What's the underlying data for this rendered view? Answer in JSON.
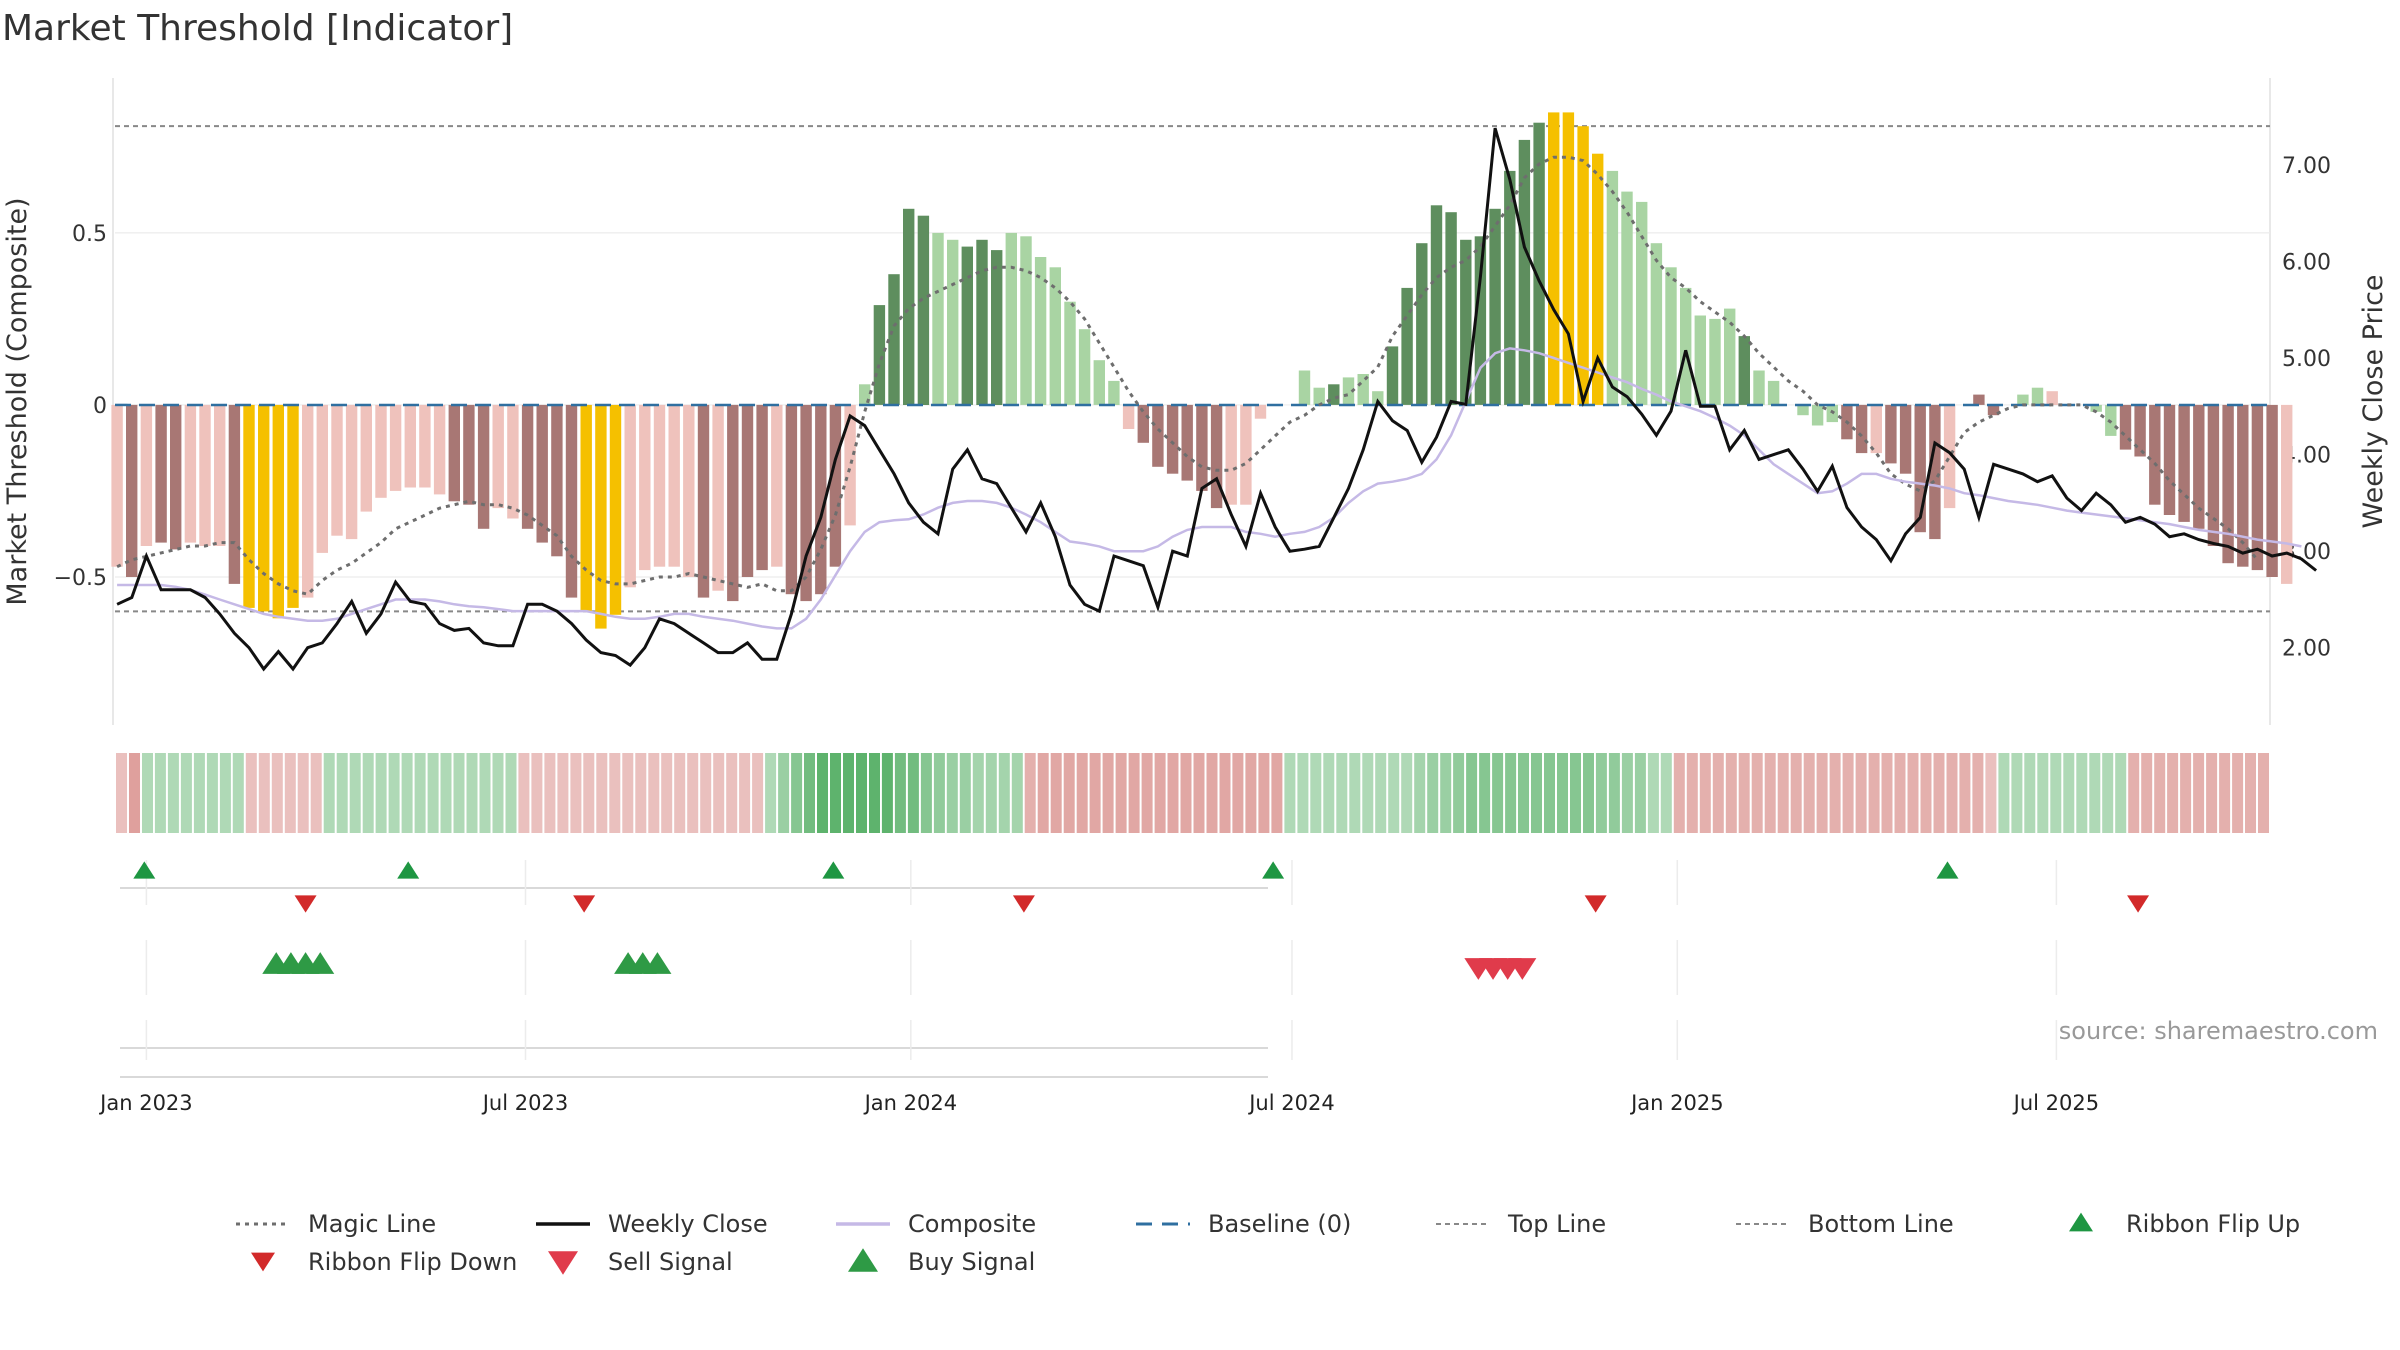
{
  "page": {
    "title": "Market Threshold [Indicator]"
  },
  "colors": {
    "pos_strong": "#5e8e5e",
    "pos_weak": "#a9d4a3",
    "neg_strong": "#a87774",
    "neg_weak": "#efc2bc",
    "extreme": "#f5c000",
    "magic": "#6e6e6e",
    "weekly": "#111111",
    "composite": "#c5b9e6",
    "baseline": "#2f6fa0",
    "threshold": "#888888",
    "ribbon_up": "#1e9642",
    "ribbon_down": "#d22a2a",
    "sell": "#e03b4b",
    "buy": "#2e9a45"
  },
  "chart_data": {
    "type": "bar",
    "title": "Market Threshold [Indicator]",
    "ylabel": "Market Threshold (Composite)",
    "ylabel_right": "Weekly Close Price",
    "ylim": [
      -0.93,
      0.95
    ],
    "ylim_right": [
      1.2,
      7.9
    ],
    "yticks_left": [
      0.5,
      0,
      -0.5
    ],
    "ytick_labels_left": [
      "0.5",
      "0",
      "−0.5"
    ],
    "yticks_right": [
      7,
      6,
      5,
      4,
      3,
      2
    ],
    "ytick_labels_right": [
      "7.00",
      "6.00",
      "5.00",
      "4.00",
      "3.00",
      "2.00"
    ],
    "xticks": [
      {
        "date": "2023-01-01",
        "label": "Jan 2023"
      },
      {
        "date": "2023-07-01",
        "label": "Jul 2023"
      },
      {
        "date": "2024-01-01",
        "label": "Jan 2024"
      },
      {
        "date": "2024-07-01",
        "label": "Jul 2024"
      },
      {
        "date": "2025-01-01",
        "label": "Jan 2025"
      },
      {
        "date": "2025-07-01",
        "label": "Jul 2025"
      }
    ],
    "x_range": [
      "2022-12-17",
      "2025-10-11"
    ],
    "top_line": 0.81,
    "bottom_line": -0.6,
    "baseline": 0,
    "start_date": "2022-12-18",
    "week_step_days": 7,
    "composite_bars": [
      -0.47,
      -0.5,
      -0.41,
      -0.4,
      -0.42,
      -0.4,
      -0.41,
      -0.41,
      -0.52,
      -0.59,
      -0.6,
      -0.62,
      -0.59,
      -0.56,
      -0.43,
      -0.38,
      -0.39,
      -0.31,
      -0.27,
      -0.25,
      -0.24,
      -0.24,
      -0.26,
      -0.28,
      -0.29,
      -0.36,
      -0.3,
      -0.33,
      -0.36,
      -0.4,
      -0.44,
      -0.56,
      -0.6,
      -0.65,
      -0.61,
      -0.53,
      -0.48,
      -0.47,
      -0.47,
      -0.5,
      -0.56,
      -0.54,
      -0.57,
      -0.5,
      -0.48,
      -0.47,
      -0.55,
      -0.57,
      -0.55,
      -0.47,
      -0.35,
      0.06,
      0.29,
      0.38,
      0.57,
      0.55,
      0.5,
      0.48,
      0.46,
      0.48,
      0.45,
      0.5,
      0.49,
      0.43,
      0.4,
      0.3,
      0.22,
      0.13,
      0.07,
      -0.07,
      -0.11,
      -0.18,
      -0.2,
      -0.22,
      -0.25,
      -0.3,
      -0.29,
      -0.29,
      -0.04,
      0.0,
      0.0,
      0.1,
      0.05,
      0.06,
      0.08,
      0.09,
      0.04,
      0.17,
      0.34,
      0.47,
      0.58,
      0.56,
      0.48,
      0.49,
      0.57,
      0.68,
      0.77,
      0.82,
      0.85,
      0.85,
      0.81,
      0.73,
      0.68,
      0.62,
      0.59,
      0.47,
      0.4,
      0.34,
      0.26,
      0.25,
      0.28,
      0.2,
      0.1,
      0.07,
      0.0,
      -0.03,
      -0.06,
      -0.05,
      -0.1,
      -0.14,
      -0.14,
      -0.17,
      -0.2,
      -0.37,
      -0.39,
      -0.3,
      -0.0,
      0.03,
      -0.03,
      0.0,
      0.03,
      0.05,
      0.04,
      0.0,
      0.0,
      -0.02,
      -0.09,
      -0.13,
      -0.15,
      -0.29,
      -0.32,
      -0.34,
      -0.36,
      -0.41,
      -0.46,
      -0.47,
      -0.48,
      -0.5,
      -0.52
    ],
    "bar_state": [
      "n",
      "N",
      "n",
      "N",
      "N",
      "n",
      "n",
      "n",
      "N",
      "y",
      "y",
      "y",
      "y",
      "n",
      "n",
      "n",
      "n",
      "n",
      "n",
      "n",
      "n",
      "n",
      "n",
      "N",
      "N",
      "N",
      "n",
      "n",
      "N",
      "N",
      "N",
      "N",
      "y",
      "y",
      "y",
      "n",
      "n",
      "n",
      "n",
      "n",
      "N",
      "n",
      "N",
      "N",
      "N",
      "n",
      "N",
      "N",
      "N",
      "N",
      "n",
      "p",
      "P",
      "P",
      "P",
      "P",
      "p",
      "p",
      "P",
      "P",
      "P",
      "p",
      "p",
      "p",
      "p",
      "p",
      "p",
      "p",
      "p",
      "n",
      "N",
      "N",
      "N",
      "N",
      "N",
      "N",
      "n",
      "n",
      "n",
      "n",
      "n",
      "p",
      "p",
      "P",
      "p",
      "p",
      "p",
      "P",
      "P",
      "P",
      "P",
      "P",
      "P",
      "P",
      "P",
      "P",
      "P",
      "P",
      "y",
      "y",
      "y",
      "y",
      "p",
      "p",
      "p",
      "p",
      "p",
      "p",
      "p",
      "p",
      "p",
      "P",
      "p",
      "p",
      "p",
      "p",
      "p",
      "p",
      "N",
      "N",
      "n",
      "N",
      "N",
      "N",
      "N",
      "n",
      "N",
      "N",
      "N",
      "N",
      "p",
      "p",
      "n",
      "n",
      "P",
      "p",
      "p",
      "N",
      "N",
      "N",
      "N",
      "N",
      "N",
      "N",
      "N",
      "N",
      "N",
      "N",
      "n",
      "N",
      "N",
      "N"
    ],
    "weekly_close": [
      2.45,
      2.52,
      2.95,
      2.6,
      2.6,
      2.6,
      2.52,
      2.35,
      2.15,
      2.0,
      1.78,
      1.96,
      1.78,
      2.0,
      2.05,
      2.25,
      2.48,
      2.15,
      2.35,
      2.68,
      2.48,
      2.45,
      2.25,
      2.18,
      2.2,
      2.05,
      2.02,
      2.02,
      2.45,
      2.45,
      2.38,
      2.25,
      2.08,
      1.95,
      1.92,
      1.82,
      2.0,
      2.3,
      2.25,
      2.15,
      2.05,
      1.95,
      1.95,
      2.05,
      1.88,
      1.88,
      2.35,
      2.95,
      3.35,
      3.95,
      4.4,
      4.3,
      4.05,
      3.8,
      3.5,
      3.3,
      3.18,
      3.85,
      4.05,
      3.75,
      3.7,
      3.45,
      3.2,
      3.5,
      3.15,
      2.65,
      2.45,
      2.38,
      2.95,
      2.9,
      2.85,
      2.42,
      3.0,
      2.95,
      3.65,
      3.75,
      3.38,
      3.05,
      3.6,
      3.25,
      3.0,
      3.02,
      3.05,
      3.35,
      3.65,
      4.05,
      4.55,
      4.35,
      4.25,
      3.92,
      4.18,
      4.55,
      4.52,
      5.85,
      7.38,
      6.85,
      6.15,
      5.8,
      5.5,
      5.25,
      4.55,
      5.0,
      4.7,
      4.6,
      4.42,
      4.2,
      4.45,
      5.08,
      4.5,
      4.5,
      4.05,
      4.25,
      3.95,
      4.0,
      4.05,
      3.85,
      3.62,
      3.88,
      3.45,
      3.25,
      3.12,
      2.9,
      3.18,
      3.35,
      4.12,
      4.02,
      3.85,
      3.35,
      3.9,
      3.85,
      3.8,
      3.72,
      3.78,
      3.55,
      3.42,
      3.6,
      3.48,
      3.3,
      3.35,
      3.28,
      3.15,
      3.18,
      3.12,
      3.08,
      3.05,
      2.98,
      3.02,
      2.95,
      2.98,
      2.92,
      2.8
    ],
    "magic_line": [
      -0.47,
      -0.45,
      -0.44,
      -0.43,
      -0.42,
      -0.41,
      -0.41,
      -0.4,
      -0.4,
      -0.45,
      -0.49,
      -0.52,
      -0.54,
      -0.55,
      -0.51,
      -0.48,
      -0.46,
      -0.43,
      -0.4,
      -0.36,
      -0.34,
      -0.32,
      -0.3,
      -0.29,
      -0.28,
      -0.29,
      -0.29,
      -0.3,
      -0.32,
      -0.35,
      -0.38,
      -0.44,
      -0.48,
      -0.51,
      -0.52,
      -0.52,
      -0.51,
      -0.5,
      -0.5,
      -0.49,
      -0.5,
      -0.51,
      -0.52,
      -0.53,
      -0.52,
      -0.54,
      -0.54,
      -0.5,
      -0.42,
      -0.32,
      -0.18,
      -0.02,
      0.12,
      0.23,
      0.28,
      0.31,
      0.33,
      0.35,
      0.37,
      0.39,
      0.4,
      0.4,
      0.39,
      0.37,
      0.34,
      0.3,
      0.25,
      0.18,
      0.11,
      0.04,
      -0.02,
      -0.07,
      -0.11,
      -0.15,
      -0.18,
      -0.19,
      -0.19,
      -0.17,
      -0.13,
      -0.09,
      -0.05,
      -0.03,
      0.0,
      0.02,
      0.03,
      0.07,
      0.11,
      0.2,
      0.26,
      0.32,
      0.37,
      0.4,
      0.42,
      0.46,
      0.52,
      0.58,
      0.66,
      0.7,
      0.72,
      0.72,
      0.71,
      0.67,
      0.62,
      0.56,
      0.49,
      0.42,
      0.37,
      0.34,
      0.3,
      0.27,
      0.24,
      0.2,
      0.15,
      0.11,
      0.07,
      0.04,
      0.0,
      -0.02,
      -0.05,
      -0.09,
      -0.14,
      -0.2,
      -0.23,
      -0.25,
      -0.22,
      -0.15,
      -0.08,
      -0.05,
      -0.03,
      -0.01,
      0.0,
      0.0,
      0.0,
      0.0,
      0.0,
      -0.02,
      -0.05,
      -0.09,
      -0.13,
      -0.17,
      -0.22,
      -0.26,
      -0.3,
      -0.33,
      -0.36,
      -0.4,
      -0.45
    ],
    "composite_line": [
      2.65,
      2.65,
      2.65,
      2.65,
      2.63,
      2.6,
      2.55,
      2.5,
      2.45,
      2.4,
      2.35,
      2.32,
      2.3,
      2.28,
      2.28,
      2.3,
      2.35,
      2.4,
      2.45,
      2.5,
      2.5,
      2.5,
      2.48,
      2.45,
      2.43,
      2.42,
      2.4,
      2.38,
      2.38,
      2.38,
      2.38,
      2.38,
      2.38,
      2.35,
      2.32,
      2.3,
      2.3,
      2.32,
      2.35,
      2.35,
      2.32,
      2.3,
      2.28,
      2.25,
      2.22,
      2.2,
      2.2,
      2.3,
      2.5,
      2.75,
      3.0,
      3.2,
      3.3,
      3.32,
      3.33,
      3.38,
      3.45,
      3.5,
      3.52,
      3.52,
      3.5,
      3.45,
      3.38,
      3.3,
      3.2,
      3.1,
      3.08,
      3.05,
      3.0,
      3.0,
      3.0,
      3.05,
      3.15,
      3.22,
      3.25,
      3.25,
      3.25,
      3.2,
      3.18,
      3.15,
      3.18,
      3.2,
      3.25,
      3.35,
      3.5,
      3.62,
      3.7,
      3.72,
      3.75,
      3.8,
      3.95,
      4.2,
      4.55,
      4.9,
      5.05,
      5.1,
      5.08,
      5.05,
      5.0,
      4.95,
      4.9,
      4.85,
      4.8,
      4.75,
      4.68,
      4.62,
      4.55,
      4.5,
      4.45,
      4.38,
      4.3,
      4.2,
      4.05,
      3.9,
      3.8,
      3.7,
      3.6,
      3.62,
      3.7,
      3.8,
      3.8,
      3.75,
      3.72,
      3.7,
      3.68,
      3.65,
      3.6,
      3.58,
      3.55,
      3.52,
      3.5,
      3.48,
      3.45,
      3.42,
      3.4,
      3.38,
      3.36,
      3.34,
      3.32,
      3.3,
      3.28,
      3.25,
      3.22,
      3.2,
      3.18,
      3.15,
      3.12,
      3.1,
      3.08,
      3.05
    ],
    "ribbon": [
      -0.4,
      -0.6,
      0.4,
      0.4,
      0.4,
      0.4,
      0.4,
      0.4,
      0.4,
      0.4,
      -0.4,
      -0.4,
      -0.4,
      -0.4,
      -0.4,
      -0.4,
      0.4,
      0.4,
      0.4,
      0.4,
      0.4,
      0.4,
      0.4,
      0.4,
      0.4,
      0.4,
      0.4,
      0.4,
      0.4,
      0.4,
      0.4,
      -0.4,
      -0.4,
      -0.4,
      -0.4,
      -0.4,
      -0.4,
      -0.4,
      -0.4,
      -0.4,
      -0.4,
      -0.4,
      -0.4,
      -0.4,
      -0.4,
      -0.4,
      -0.4,
      -0.4,
      -0.4,
      -0.4,
      0.4,
      0.5,
      0.6,
      0.7,
      0.8,
      0.8,
      0.8,
      0.8,
      0.8,
      0.8,
      0.7,
      0.7,
      0.6,
      0.55,
      0.5,
      0.5,
      0.45,
      0.45,
      0.45,
      0.45,
      -0.5,
      -0.55,
      -0.55,
      -0.55,
      -0.55,
      -0.55,
      -0.55,
      -0.55,
      -0.55,
      -0.55,
      -0.55,
      -0.55,
      -0.55,
      -0.55,
      -0.55,
      -0.55,
      -0.55,
      -0.55,
      -0.55,
      -0.55,
      0.4,
      0.4,
      0.4,
      0.4,
      0.4,
      0.4,
      0.4,
      0.4,
      0.4,
      0.4,
      0.45,
      0.5,
      0.5,
      0.55,
      0.6,
      0.6,
      0.6,
      0.6,
      0.6,
      0.6,
      0.6,
      0.6,
      0.6,
      0.6,
      0.55,
      0.55,
      0.5,
      0.5,
      0.4,
      0.4,
      -0.5,
      -0.5,
      -0.5,
      -0.5,
      -0.5,
      -0.5,
      -0.5,
      -0.5,
      -0.5,
      -0.5,
      -0.5,
      -0.5,
      -0.5,
      -0.5,
      -0.5,
      -0.5,
      -0.5,
      -0.5,
      -0.5,
      -0.5,
      -0.5,
      -0.5,
      -0.5,
      -0.5,
      -0.4,
      0.4,
      0.4,
      0.4,
      0.4,
      0.4,
      0.4,
      0.4,
      0.4,
      0.4,
      0.4,
      -0.5,
      -0.5,
      -0.5,
      -0.5,
      -0.5,
      -0.5,
      -0.5,
      -0.5,
      -0.5,
      -0.5,
      -0.5
    ],
    "ribbon_flip_up": [
      "2022-12-31",
      "2023-05-06",
      "2023-11-25",
      "2024-06-22",
      "2025-05-10"
    ],
    "ribbon_flip_down": [
      "2023-03-18",
      "2023-07-29",
      "2024-02-24",
      "2024-11-23",
      "2025-08-09"
    ],
    "buy_signals": [
      "2023-03-04",
      "2023-03-11",
      "2023-03-18",
      "2023-03-25",
      "2023-08-19",
      "2023-08-26",
      "2023-09-02"
    ],
    "sell_signals": [
      "2024-09-28",
      "2024-10-05",
      "2024-10-12",
      "2024-10-19"
    ],
    "annotation": "source: sharemaestro.com",
    "legend": [
      {
        "label": "Magic Line",
        "kind": "dotted",
        "color": "#6e6e6e"
      },
      {
        "label": "Weekly Close",
        "kind": "solid",
        "color": "#111111"
      },
      {
        "label": "Composite",
        "kind": "solid",
        "color": "#c5b9e6"
      },
      {
        "label": "Baseline (0)",
        "kind": "dashed",
        "color": "#2f6fa0"
      },
      {
        "label": "Top Line",
        "kind": "thin-dashed",
        "color": "#888888"
      },
      {
        "label": "Bottom Line",
        "kind": "thin-dashed",
        "color": "#888888"
      },
      {
        "label": "Ribbon Flip Up",
        "kind": "tri-up-small",
        "color": "#1e9642"
      },
      {
        "label": "Ribbon Flip Down",
        "kind": "tri-down-small",
        "color": "#d22a2a"
      },
      {
        "label": "Sell Signal",
        "kind": "tri-down",
        "color": "#e03b4b"
      },
      {
        "label": "Buy Signal",
        "kind": "tri-up",
        "color": "#2e9a45"
      }
    ],
    "legend_placement": "bottom",
    "grid": true
  }
}
